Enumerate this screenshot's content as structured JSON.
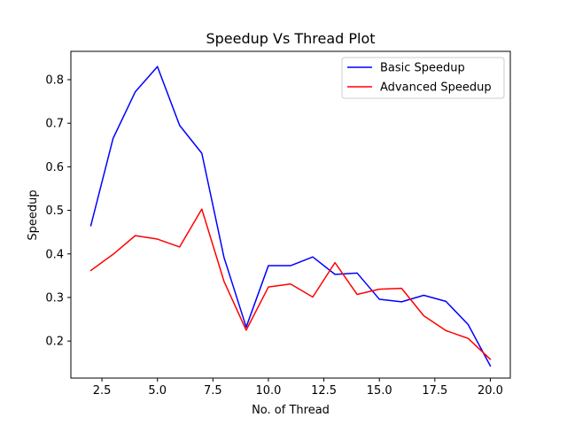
{
  "chart_data": {
    "type": "line",
    "title": "Speedup Vs Thread Plot",
    "xlabel": "No. of Thread",
    "ylabel": "Speedup",
    "xlim": [
      1.1,
      20.9
    ],
    "ylim": [
      0.115,
      0.865
    ],
    "xticks": [
      2.5,
      5.0,
      7.5,
      10.0,
      12.5,
      15.0,
      17.5,
      20.0
    ],
    "xtick_labels": [
      "2.5",
      "5.0",
      "7.5",
      "10.0",
      "12.5",
      "15.0",
      "17.5",
      "20.0"
    ],
    "yticks": [
      0.2,
      0.3,
      0.4,
      0.5,
      0.6,
      0.7,
      0.8
    ],
    "ytick_labels": [
      "0.2",
      "0.3",
      "0.4",
      "0.5",
      "0.6",
      "0.7",
      "0.8"
    ],
    "grid": false,
    "legend_position": "top-right",
    "x": [
      2,
      3,
      4,
      5,
      6,
      7,
      8,
      9,
      10,
      11,
      12,
      13,
      14,
      15,
      16,
      17,
      18,
      19,
      20
    ],
    "series": [
      {
        "name": "Basic Speedup",
        "color": "#0000ff",
        "values": [
          0.465,
          0.665,
          0.772,
          0.83,
          0.695,
          0.631,
          0.392,
          0.232,
          0.373,
          0.373,
          0.393,
          0.353,
          0.356,
          0.296,
          0.29,
          0.305,
          0.291,
          0.238,
          0.143
        ]
      },
      {
        "name": "Advanced Speedup",
        "color": "#ff0000",
        "values": [
          0.362,
          0.399,
          0.442,
          0.434,
          0.416,
          0.503,
          0.337,
          0.225,
          0.324,
          0.331,
          0.301,
          0.38,
          0.307,
          0.319,
          0.321,
          0.258,
          0.224,
          0.206,
          0.158
        ]
      }
    ]
  }
}
